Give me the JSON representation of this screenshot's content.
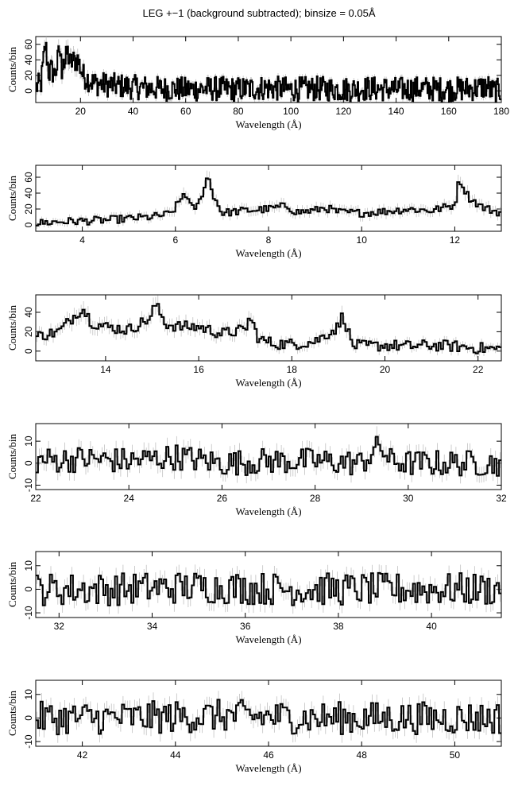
{
  "figure": {
    "title": "LEG +−1 (background subtracted); binsize = 0.05Å",
    "line_color": "#000000",
    "error_color": "#b8b8b8"
  },
  "chart_data": [
    {
      "type": "line",
      "xlabel": "Wavelength (Å)",
      "ylabel": "Counts/bin",
      "xlim": [
        3,
        180
      ],
      "ylim": [
        -15,
        70
      ],
      "xticks": [
        20,
        40,
        60,
        80,
        100,
        120,
        140,
        160,
        180
      ],
      "yticks": [
        0,
        20,
        40,
        60
      ],
      "x": [
        3,
        5,
        6,
        6.7,
        8,
        9,
        10,
        11,
        12.1,
        13,
        13.5,
        14,
        15,
        16,
        17,
        19,
        21,
        25,
        30,
        40,
        50,
        60,
        70,
        80,
        90,
        100,
        110,
        120,
        130,
        140,
        150,
        160,
        170,
        175,
        176,
        180
      ],
      "y": [
        5,
        8,
        40,
        60,
        22,
        28,
        20,
        30,
        55,
        25,
        50,
        30,
        52,
        35,
        38,
        40,
        20,
        10,
        8,
        5,
        3,
        2,
        3,
        2,
        4,
        2,
        3,
        2,
        3,
        2,
        3,
        2,
        3,
        6,
        0,
        0
      ],
      "noise": 16
    },
    {
      "type": "line",
      "xlabel": "Wavelength (Å)",
      "ylabel": "Counts/bin",
      "xlim": [
        3,
        13
      ],
      "ylim": [
        -8,
        75
      ],
      "xticks": [
        4,
        6,
        8,
        10,
        12
      ],
      "yticks": [
        0,
        20,
        40,
        60
      ],
      "x": [
        3,
        3.5,
        4,
        4.5,
        5,
        5.5,
        5.9,
        6.1,
        6.2,
        6.35,
        6.5,
        6.6,
        6.7,
        6.8,
        7.0,
        7.5,
        8,
        8.4,
        8.6,
        9,
        9.2,
        9.5,
        10,
        10.5,
        11,
        11.5,
        12,
        12.1,
        12.3,
        12.6,
        13
      ],
      "y": [
        2,
        4,
        5,
        6,
        8,
        10,
        14,
        30,
        42,
        20,
        25,
        45,
        62,
        40,
        15,
        18,
        20,
        24,
        16,
        18,
        22,
        16,
        15,
        17,
        20,
        18,
        25,
        58,
        35,
        22,
        15
      ],
      "noise": 5
    },
    {
      "type": "line",
      "xlabel": "Wavelength (Å)",
      "ylabel": "Counts/bin",
      "xlim": [
        12.5,
        22.5
      ],
      "ylim": [
        -10,
        58
      ],
      "xticks": [
        14,
        16,
        18,
        20,
        22
      ],
      "yticks": [
        0,
        20,
        40
      ],
      "x": [
        12.5,
        13,
        13.5,
        13.7,
        14,
        14.5,
        15,
        15.05,
        15.3,
        15.6,
        16,
        16.5,
        17,
        17.1,
        17.3,
        17.6,
        18,
        18.5,
        19,
        19.1,
        19.3,
        19.6,
        20,
        20.5,
        21,
        21.5,
        22,
        22.5
      ],
      "y": [
        15,
        20,
        45,
        30,
        25,
        22,
        35,
        50,
        28,
        25,
        25,
        18,
        22,
        35,
        12,
        8,
        7,
        10,
        25,
        38,
        6,
        5,
        6,
        5,
        6,
        5,
        3,
        2
      ],
      "noise": 6
    },
    {
      "type": "line",
      "xlabel": "Wavelength (Å)",
      "ylabel": "Counts/bin",
      "xlim": [
        22,
        32
      ],
      "ylim": [
        -12,
        18
      ],
      "xticks": [
        22,
        24,
        26,
        28,
        30,
        32
      ],
      "yticks": [
        -10,
        0,
        10
      ],
      "x": [
        22,
        23,
        24,
        25,
        26,
        27,
        28,
        29,
        29.4,
        29.6,
        30,
        31,
        32
      ],
      "y": [
        1,
        2,
        1,
        3,
        0,
        1,
        1,
        0,
        8,
        1,
        0,
        0,
        0
      ],
      "noise": 6
    },
    {
      "type": "line",
      "xlabel": "Wavelength (Å)",
      "ylabel": "Counts/bin",
      "xlim": [
        31.5,
        41.5
      ],
      "ylim": [
        -12,
        16
      ],
      "xticks": [
        32,
        34,
        36,
        38,
        40
      ],
      "yticks": [
        -10,
        0,
        10
      ],
      "x": [
        31.5,
        33,
        35,
        37,
        39,
        41.5
      ],
      "y": [
        0,
        0,
        1,
        0,
        0,
        0
      ],
      "noise": 7
    },
    {
      "type": "line",
      "xlabel": "Wavelength (Å)",
      "ylabel": "Counts/bin",
      "xlim": [
        41,
        51
      ],
      "ylim": [
        -12,
        16
      ],
      "xticks": [
        42,
        44,
        46,
        48,
        50
      ],
      "yticks": [
        -10,
        0,
        10
      ],
      "x": [
        41,
        43,
        45,
        47,
        49,
        51
      ],
      "y": [
        0,
        0,
        1,
        0,
        0,
        0
      ],
      "noise": 7
    }
  ]
}
